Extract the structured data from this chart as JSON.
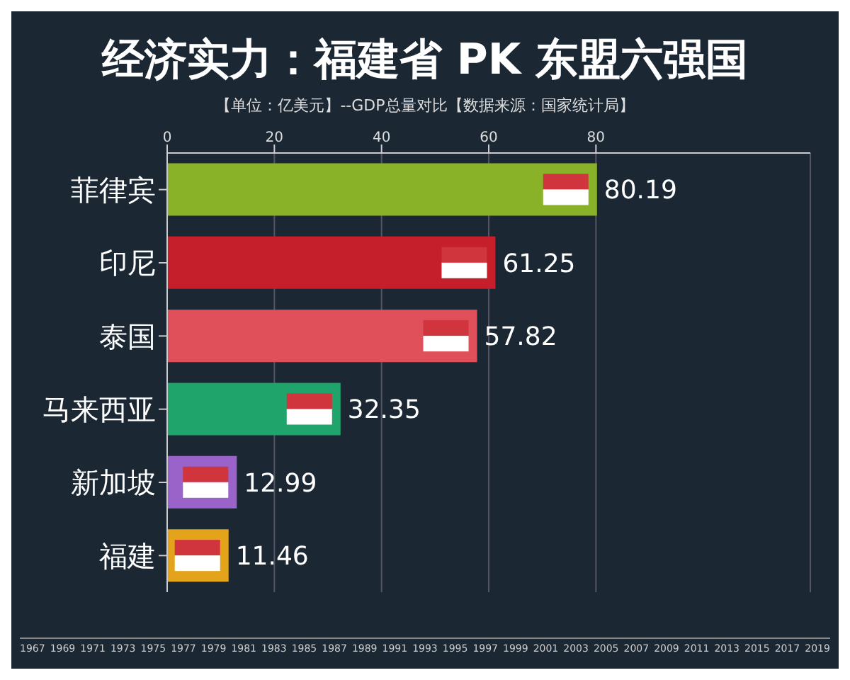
{
  "chart_data": {
    "type": "bar",
    "orientation": "horizontal",
    "title": "经济实力：福建省 PK 东盟六强国",
    "subtitle": "【单位：亿美元】--GDP总量对比【数据来源：国家统计局】",
    "categories": [
      "菲律宾",
      "印尼",
      "泰国",
      "马来西亚",
      "新加坡",
      "福建"
    ],
    "values": [
      80.19,
      61.25,
      57.82,
      32.35,
      12.99,
      11.46
    ],
    "colors": [
      "#8ab228",
      "#c41f2b",
      "#e0505a",
      "#1fa46c",
      "#9a63c9",
      "#e3a41c"
    ],
    "xlim": [
      0,
      120
    ],
    "xticks": [
      0,
      20,
      40,
      60,
      80
    ],
    "grid": "x",
    "data_labels": true,
    "annotations": [
      "1967",
      "1969",
      "1971",
      "1973",
      "1975",
      "1977",
      "1979",
      "1981",
      "1983",
      "1985",
      "1987",
      "1989",
      "1991",
      "1993",
      "1995",
      "1997",
      "1999",
      "2001",
      "2003",
      "2005",
      "2007",
      "2009",
      "2011",
      "2013",
      "2015",
      "2017",
      "2019"
    ]
  }
}
